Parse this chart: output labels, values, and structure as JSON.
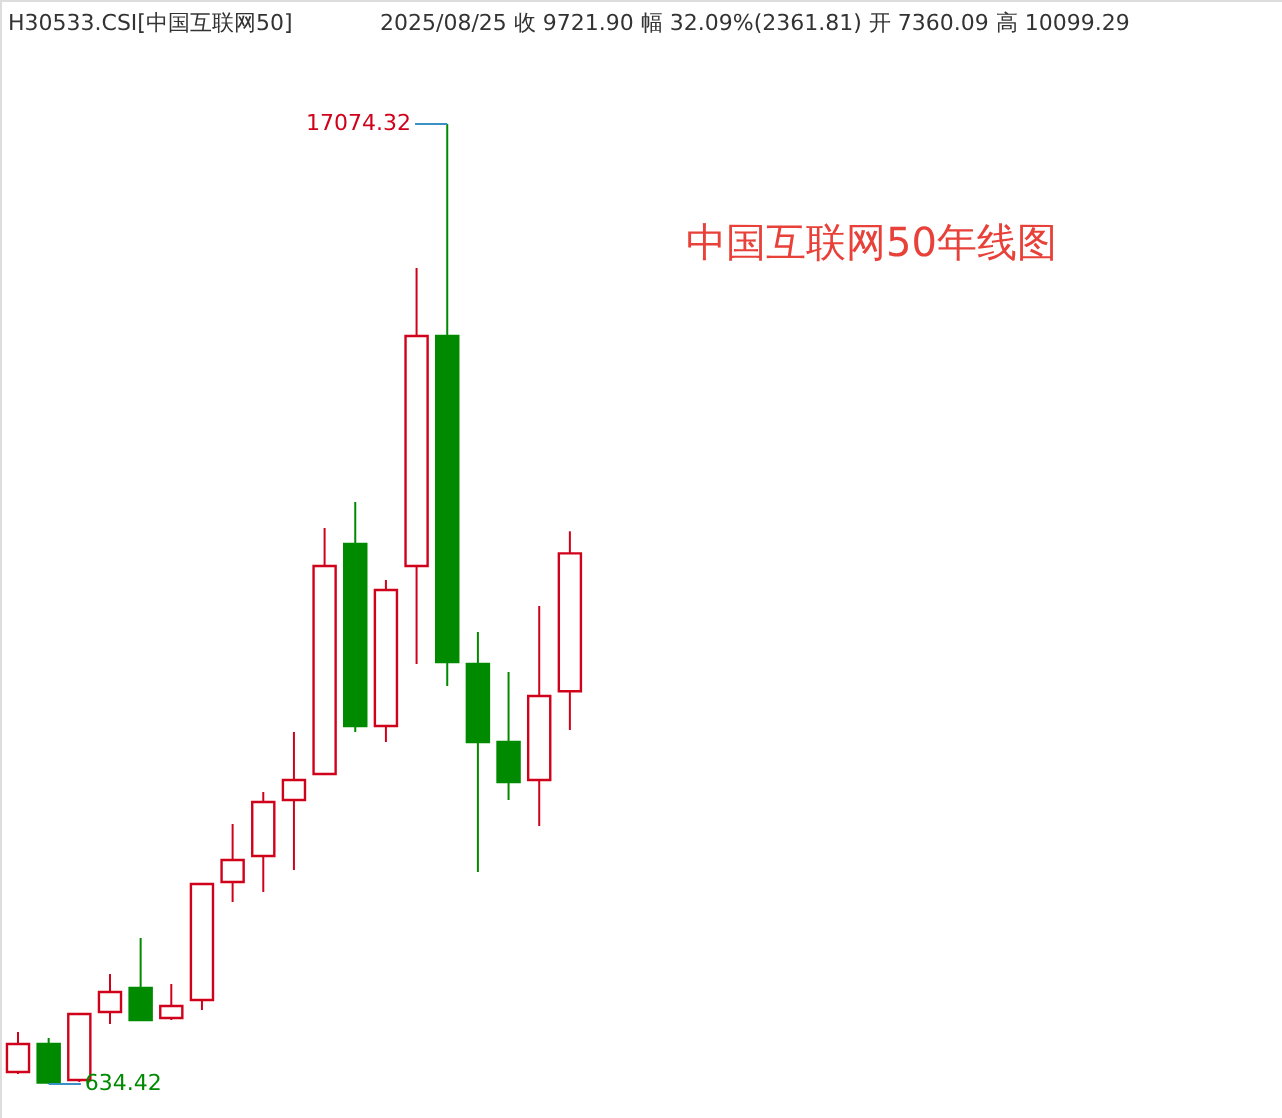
{
  "chart_data": {
    "type": "candlestick",
    "title": "H30533.CSI[中国互联网50]",
    "subtitle": "2025/08/25  收 9721.90  幅 32.09%(2361.81)  开 7360.09  高 10099.29",
    "categories": [
      null,
      null,
      null,
      null,
      null,
      null,
      null,
      null,
      null,
      null,
      null,
      null,
      null,
      null,
      null,
      null,
      null,
      null,
      null
    ],
    "ohlc": [
      [
        840,
        1525,
        806,
        1319
      ],
      [
        1319,
        1422,
        634.42,
        660
      ],
      [
        703,
        1833,
        669,
        1833
      ],
      [
        1867,
        2518,
        1662,
        2210
      ],
      [
        2278,
        3135,
        1730,
        1730
      ],
      [
        1765,
        2347,
        1730,
        1970
      ],
      [
        2073,
        4059,
        1902,
        4059
      ],
      [
        4094,
        5087,
        3751,
        4470
      ],
      [
        4539,
        5635,
        3922,
        5464
      ],
      [
        5498,
        6662,
        4299,
        5840
      ],
      [
        5943,
        10156,
        5943,
        9505
      ],
      [
        9882,
        10601,
        6662,
        6765
      ],
      [
        6765,
        9265,
        6491,
        9094
      ],
      [
        9505,
        14608,
        7827,
        13444
      ],
      [
        13444,
        17074.32,
        7450,
        7861
      ],
      [
        7827,
        8375,
        4265,
        6491
      ],
      [
        6491,
        7690,
        5498,
        5806
      ],
      [
        5840,
        8820,
        5053,
        7279
      ],
      [
        7360.09,
        10099.29,
        6697,
        9721.9
      ]
    ],
    "colors": [
      "#d0021b",
      "#008a00",
      "#d0021b",
      "#d0021b",
      "#008a00",
      "#d0021b",
      "#d0021b",
      "#d0021b",
      "#d0021b",
      "#d0021b",
      "#d0021b",
      "#008a00",
      "#d0021b",
      "#d0021b",
      "#008a00",
      "#008a00",
      "#008a00",
      "#d0021b",
      "#d0021b"
    ],
    "annotations": [
      "中国互联网50年线图",
      "17074.32",
      "634.42"
    ]
  }
}
